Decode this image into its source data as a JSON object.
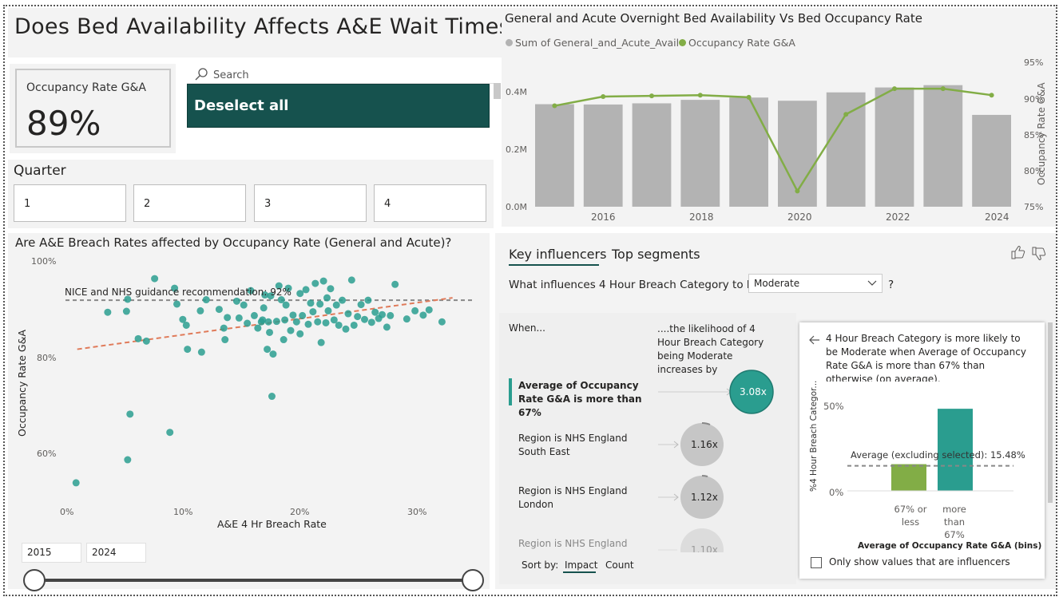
{
  "page": {
    "title": "Does Bed Availability Affects A&E Wait Times?"
  },
  "kpi_card": {
    "label": "Occupancy Rate G&A",
    "value": "89%"
  },
  "slicer_search": {
    "placeholder": "Search",
    "deselect_label": "Deselect all"
  },
  "quarter_slicer": {
    "title": "Quarter",
    "options": [
      "1",
      "2",
      "3",
      "4"
    ]
  },
  "bed_chart": {
    "title": "General and Acute Overnight Bed Availability Vs Bed Occupancy Rate",
    "legend": [
      "Sum of General_and_Acute_Avail",
      "Occupancy Rate G&A"
    ],
    "y_left_ticks": [
      "0.4M",
      "0.2M",
      "0.0M"
    ],
    "y_right_ticks": [
      "95%",
      "90%",
      "85%",
      "80%",
      "75%"
    ],
    "y_right_label": "Occupancy Rate G&A",
    "x_ticks": [
      "2016",
      "2018",
      "2020",
      "2022",
      "2024"
    ]
  },
  "scatter_chart": {
    "title": "Are A&E Breach Rates affected by Occupancy Rate (General and Acute)?",
    "x_label": "A&E 4 Hr Breach Rate",
    "y_label": "Occupancy Rate G&A",
    "x_ticks": [
      "0%",
      "10%",
      "20%",
      "30%"
    ],
    "y_ticks": [
      "100%",
      "80%",
      "60%"
    ],
    "reference_label": "NICE and NHS guidance recommendation: 92%"
  },
  "year_slider": {
    "start": "2015",
    "end": "2024"
  },
  "key_influencers": {
    "tabs": [
      "Key influencers",
      "Top segments"
    ],
    "question_prefix": "What influences 4 Hour Breach Category to be",
    "selected_value": "Moderate",
    "question_suffix": "?",
    "when_label": "When...",
    "likelihood_label": "....the likelihood of 4 Hour Breach Category being Moderate increases by",
    "influencers": [
      {
        "label": "Average of Occupancy Rate G&A is more than 67%",
        "value": "3.08x"
      },
      {
        "label": "Region is NHS England South East",
        "value": "1.16x"
      },
      {
        "label": "Region is NHS England London",
        "value": "1.12x"
      },
      {
        "label": "Region is NHS England North West",
        "value": "1.10x"
      }
    ],
    "sort_by": "Sort by:",
    "sort_options": [
      "Impact",
      "Count"
    ]
  },
  "detail_popup": {
    "description": "4 Hour Breach Category is more likely to be Moderate when Average of Occupancy Rate G&A is more than 67% than otherwise (on average).",
    "y_label": "%4 Hour Breach Categor...",
    "y_ticks": [
      "50%",
      "0%"
    ],
    "average_label": "Average (excluding selected): 15.48%",
    "x_label": "Average of Occupancy Rate G&A (bins)",
    "checkbox_label": "Only show values that are influencers",
    "bar_labels": [
      "67% or less",
      "more than 67%"
    ]
  },
  "colors": {
    "teal": "#2a9d8f",
    "green": "#82ad46",
    "bar_grey": "#b3b3b3",
    "dark_teal": "#16524e",
    "trend": "#e07b5a"
  },
  "chart_data": [
    {
      "type": "bar",
      "title": "General and Acute Overnight Bed Availability Vs Bed Occupancy Rate",
      "categories": [
        "2015",
        "2016",
        "2017",
        "2018",
        "2019",
        "2020",
        "2021",
        "2022",
        "2023",
        "2024"
      ],
      "series": [
        {
          "name": "Sum of General_and_Acute_Avail",
          "values": [
            0.355,
            0.354,
            0.358,
            0.37,
            0.378,
            0.367,
            0.396,
            0.413,
            0.421,
            0.318
          ]
        },
        {
          "name": "Occupancy Rate G&A",
          "values": [
            89.2,
            90.5,
            90.6,
            90.7,
            90.4,
            77.2,
            88.0,
            91.6,
            91.6,
            90.7
          ]
        }
      ],
      "ylim": [
        0,
        0.55
      ],
      "y2lim": [
        75,
        96
      ]
    },
    {
      "type": "scatter",
      "title": "Are A&E Breach Rates affected by Occupancy Rate (General and Acute)?",
      "xlabel": "A&E 4 Hr Breach Rate",
      "ylabel": "Occupancy Rate G&A",
      "xlim": [
        0,
        0.35
      ],
      "ylim": [
        0.5,
        1.0
      ],
      "reference_y": 0.92,
      "trend": [
        [
          0.01,
          0.818
        ],
        [
          0.33,
          0.925
        ]
      ],
      "points": [
        [
          0.009,
          0.54
        ],
        [
          0.053,
          0.588
        ],
        [
          0.055,
          0.683
        ],
        [
          0.089,
          0.645
        ],
        [
          0.176,
          0.72
        ],
        [
          0.036,
          0.895
        ],
        [
          0.052,
          0.897
        ],
        [
          0.053,
          0.922
        ],
        [
          0.062,
          0.84
        ],
        [
          0.069,
          0.835
        ],
        [
          0.076,
          0.965
        ],
        [
          0.093,
          0.945
        ],
        [
          0.095,
          0.912
        ],
        [
          0.1,
          0.88
        ],
        [
          0.103,
          0.868
        ],
        [
          0.104,
          0.818
        ],
        [
          0.115,
          0.898
        ],
        [
          0.116,
          0.812
        ],
        [
          0.12,
          0.921
        ],
        [
          0.131,
          0.901
        ],
        [
          0.135,
          0.862
        ],
        [
          0.138,
          0.884
        ],
        [
          0.146,
          0.918
        ],
        [
          0.148,
          0.883
        ],
        [
          0.152,
          0.91
        ],
        [
          0.155,
          0.872
        ],
        [
          0.158,
          0.94
        ],
        [
          0.161,
          0.888
        ],
        [
          0.164,
          0.862
        ],
        [
          0.167,
          0.875
        ],
        [
          0.168,
          0.879
        ],
        [
          0.169,
          0.904
        ],
        [
          0.17,
          0.931
        ],
        [
          0.172,
          0.818
        ],
        [
          0.173,
          0.875
        ],
        [
          0.175,
          0.929
        ],
        [
          0.177,
          0.808
        ],
        [
          0.18,
          0.876
        ],
        [
          0.182,
          0.95
        ],
        [
          0.184,
          0.921
        ],
        [
          0.187,
          0.879
        ],
        [
          0.188,
          0.91
        ],
        [
          0.19,
          0.945
        ],
        [
          0.192,
          0.857
        ],
        [
          0.194,
          0.889
        ],
        [
          0.197,
          0.875
        ],
        [
          0.2,
          0.934
        ],
        [
          0.202,
          0.888
        ],
        [
          0.205,
          0.942
        ],
        [
          0.207,
          0.87
        ],
        [
          0.209,
          0.914
        ],
        [
          0.211,
          0.896
        ],
        [
          0.213,
          0.955
        ],
        [
          0.215,
          0.875
        ],
        [
          0.217,
          0.912
        ],
        [
          0.218,
          0.832
        ],
        [
          0.22,
          0.96
        ],
        [
          0.223,
          0.925
        ],
        [
          0.224,
          0.898
        ],
        [
          0.226,
          0.944
        ],
        [
          0.229,
          0.879
        ],
        [
          0.231,
          0.91
        ],
        [
          0.233,
          0.868
        ],
        [
          0.236,
          0.92
        ],
        [
          0.239,
          0.86
        ],
        [
          0.241,
          0.892
        ],
        [
          0.244,
          0.962
        ],
        [
          0.246,
          0.868
        ],
        [
          0.249,
          0.886
        ],
        [
          0.252,
          0.911
        ],
        [
          0.255,
          0.88
        ],
        [
          0.258,
          0.92
        ],
        [
          0.261,
          0.874
        ],
        [
          0.264,
          0.895
        ],
        [
          0.267,
          0.882
        ],
        [
          0.27,
          0.89
        ],
        [
          0.274,
          0.864
        ],
        [
          0.277,
          0.888
        ],
        [
          0.281,
          0.953
        ],
        [
          0.291,
          0.881
        ],
        [
          0.298,
          0.898
        ],
        [
          0.305,
          0.889
        ],
        [
          0.31,
          0.9
        ],
        [
          0.321,
          0.875
        ],
        [
          0.136,
          0.838
        ],
        [
          0.186,
          0.838
        ],
        [
          0.174,
          0.853
        ],
        [
          0.2,
          0.85
        ],
        [
          0.222,
          0.873
        ]
      ]
    },
    {
      "type": "bar",
      "title": "",
      "xlabel": "Average of Occupancy Rate G&A (bins)",
      "ylabel": "%4 Hour Breach Categor...",
      "categories": [
        "67% or less",
        "more than 67%"
      ],
      "values": [
        0.1548,
        0.4762
      ],
      "ylim": [
        0,
        0.5
      ]
    }
  ]
}
